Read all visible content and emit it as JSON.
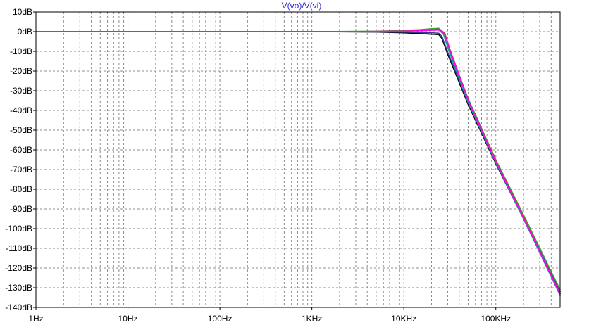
{
  "chart_data": {
    "type": "line",
    "title": "V(vo)/V(vi)",
    "x_scale": "log",
    "xlim": [
      1,
      500000
    ],
    "ylim": [
      -140,
      10
    ],
    "grid": true,
    "x_ticks": [
      {
        "value": 1,
        "label": "1Hz"
      },
      {
        "value": 10,
        "label": "10Hz"
      },
      {
        "value": 100,
        "label": "100Hz"
      },
      {
        "value": 1000,
        "label": "1KHz"
      },
      {
        "value": 10000,
        "label": "10KHz"
      },
      {
        "value": 100000,
        "label": "100KHz"
      }
    ],
    "y_ticks": [
      {
        "value": 10,
        "label": "10dB"
      },
      {
        "value": 0,
        "label": "0dB"
      },
      {
        "value": -10,
        "label": "-10dB"
      },
      {
        "value": -20,
        "label": "-20dB"
      },
      {
        "value": -30,
        "label": "-30dB"
      },
      {
        "value": -40,
        "label": "-40dB"
      },
      {
        "value": -50,
        "label": "-50dB"
      },
      {
        "value": -60,
        "label": "-60dB"
      },
      {
        "value": -70,
        "label": "-70dB"
      },
      {
        "value": -80,
        "label": "-80dB"
      },
      {
        "value": -90,
        "label": "-90dB"
      },
      {
        "value": -100,
        "label": "-100dB"
      },
      {
        "value": -110,
        "label": "-110dB"
      },
      {
        "value": -120,
        "label": "-120dB"
      },
      {
        "value": -130,
        "label": "-130dB"
      },
      {
        "value": -140,
        "label": "-140dB"
      }
    ],
    "series": [
      {
        "color": "#000000",
        "x": [
          1,
          1000,
          5000,
          10000,
          15000,
          20000,
          24000,
          26000,
          30000,
          50000,
          100000,
          200000,
          500000
        ],
        "y": [
          0,
          0,
          -0.2,
          -0.6,
          -1.0,
          -1.3,
          -1.5,
          -3.5,
          -11.5,
          -37,
          -67,
          -95,
          -133
        ]
      },
      {
        "color": "#3a3a8c",
        "x": [
          1,
          1000,
          5000,
          10000,
          15000,
          20000,
          24000,
          26000,
          30000,
          50000,
          100000,
          200000,
          500000
        ],
        "y": [
          0,
          0,
          -0.1,
          -0.3,
          -0.5,
          -0.6,
          -0.8,
          -2.5,
          -10.5,
          -36,
          -66,
          -94,
          -132
        ]
      },
      {
        "color": "#2a2aff",
        "x": [
          1,
          1000,
          5000,
          10000,
          15000,
          20000,
          24000,
          27000,
          31000,
          50000,
          100000,
          200000,
          500000
        ],
        "y": [
          0,
          0,
          0.1,
          0.4,
          0.8,
          1.2,
          1.4,
          -1.0,
          -9.0,
          -35,
          -65.5,
          -93.5,
          -132
        ]
      },
      {
        "color": "#00a6a6",
        "x": [
          1,
          1000,
          5000,
          10000,
          15000,
          20000,
          24000,
          27000,
          31000,
          50000,
          100000,
          200000,
          500000
        ],
        "y": [
          0,
          0,
          0.1,
          0.3,
          0.6,
          0.9,
          1.0,
          -1.5,
          -10,
          -36,
          -66.5,
          -95,
          -134
        ]
      },
      {
        "color": "#33a633",
        "x": [
          1,
          1000,
          5000,
          10000,
          15000,
          20000,
          24000,
          27000,
          31000,
          50000,
          100000,
          200000,
          500000
        ],
        "y": [
          0,
          0,
          0.2,
          0.6,
          1.0,
          1.5,
          1.7,
          -0.5,
          -8.5,
          -34,
          -65,
          -93,
          -131
        ]
      },
      {
        "color": "#cc3333",
        "x": [
          1,
          1000,
          5000,
          10000,
          15000,
          20000,
          25000,
          28000,
          32000,
          50000,
          100000,
          200000,
          500000
        ],
        "y": [
          0,
          0,
          0.1,
          0.3,
          0.6,
          0.9,
          1.0,
          -1.0,
          -9.5,
          -34.5,
          -65.5,
          -94,
          -133
        ]
      },
      {
        "color": "#ff00ff",
        "x": [
          1,
          1000,
          5000,
          10000,
          15000,
          20000,
          25000,
          28000,
          32000,
          50000,
          100000,
          200000,
          500000
        ],
        "y": [
          0,
          0,
          0.1,
          0.2,
          0.4,
          0.7,
          0.8,
          -1.5,
          -10,
          -35,
          -66,
          -94.5,
          -133.5
        ]
      }
    ]
  }
}
